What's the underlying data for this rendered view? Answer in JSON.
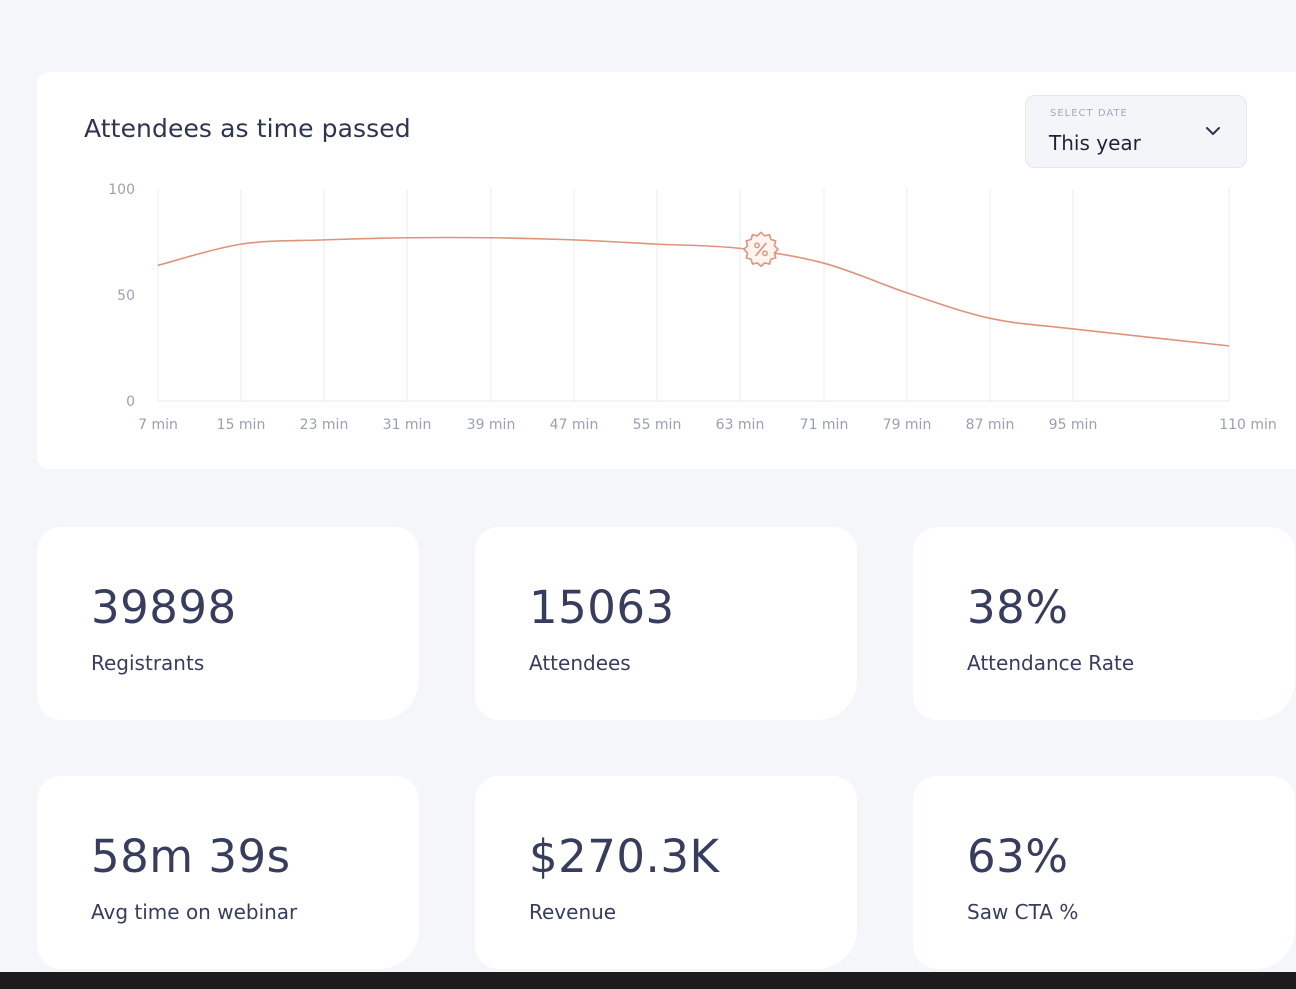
{
  "chart_card": {
    "title": "Attendees as time passed",
    "date_select": {
      "label": "SELECT DATE",
      "value": "This year"
    }
  },
  "chart_data": {
    "type": "line",
    "title": "Attendees as time passed",
    "x": [
      "7 min",
      "15 min",
      "23 min",
      "31 min",
      "39 min",
      "47 min",
      "55 min",
      "63 min",
      "71 min",
      "79 min",
      "87 min",
      "95 min",
      "110 min"
    ],
    "y_ticks": [
      "0",
      "50",
      "100"
    ],
    "ylim": [
      0,
      100
    ],
    "series": [
      {
        "values": [
          64,
          74,
          76,
          77,
          77,
          76,
          74,
          72,
          65,
          51,
          39,
          34,
          26
        ]
      }
    ],
    "marker": {
      "x": "63 min",
      "icon": "percent-badge-icon"
    },
    "color": "#e0937a",
    "grid": "vertical"
  },
  "stats": [
    {
      "value": "39898",
      "label": "Registrants"
    },
    {
      "value": "15063",
      "label": "Attendees"
    },
    {
      "value": "38%",
      "label": "Attendance Rate"
    },
    {
      "value": "58m 39s",
      "label": "Avg time on webinar"
    },
    {
      "value": "$270.3K",
      "label": "Revenue"
    },
    {
      "value": "63%",
      "label": "Saw CTA %"
    }
  ]
}
